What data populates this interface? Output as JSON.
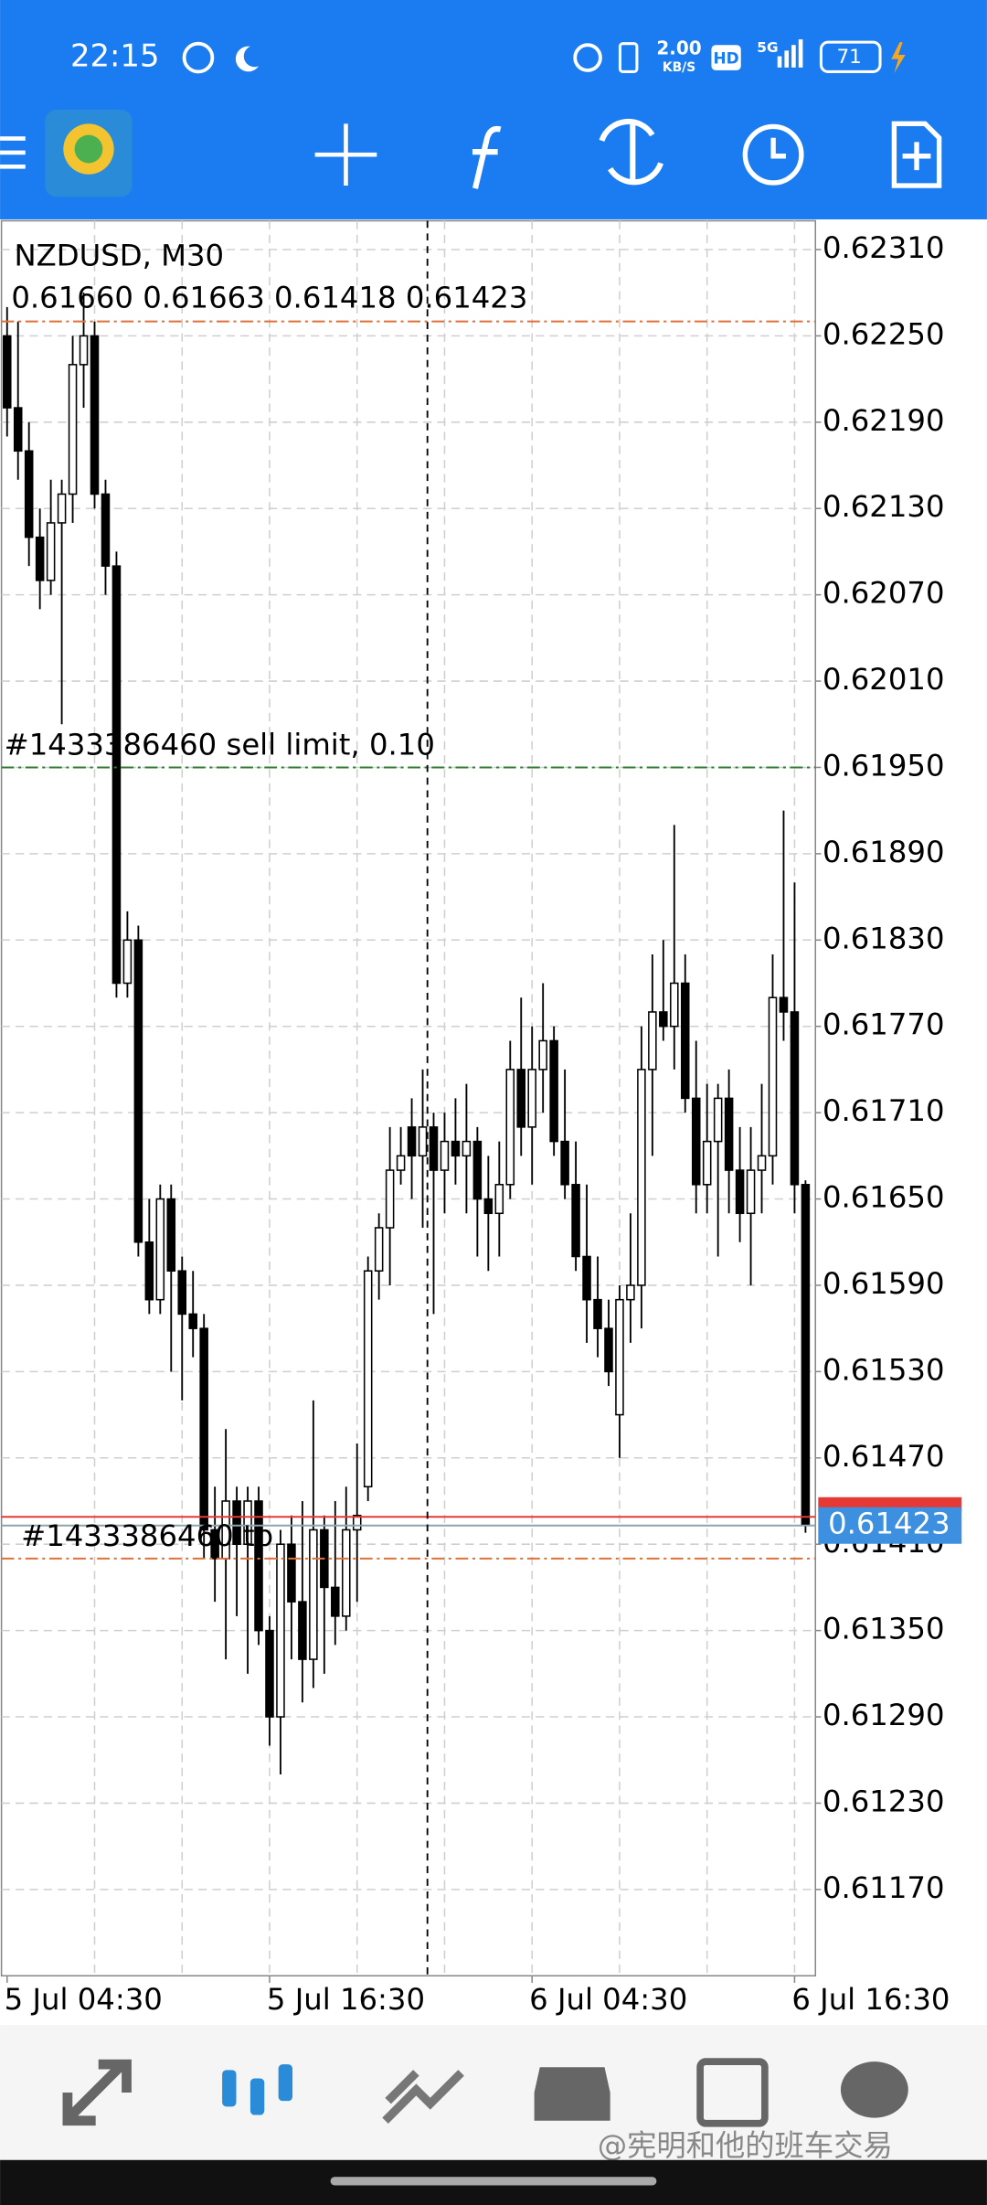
{
  "status_bar": {
    "time": "22:15",
    "speed": "2.00",
    "speed_unit": "KB/S",
    "hd": "HD",
    "network": "5G",
    "battery": "71"
  },
  "chart_data": {
    "type": "candlestick",
    "symbol": "NZDUSD, M30",
    "ohlc_text": "0.61660 0.61663 0.61418 0.61423",
    "categories": [
      "5 Jul 04:30",
      null,
      null,
      null,
      null,
      null,
      null,
      null,
      null,
      null,
      null,
      null,
      null,
      null,
      null,
      null,
      null,
      null,
      null,
      null,
      null,
      null,
      null,
      null,
      "5 Jul 16:30",
      null,
      null,
      null,
      null,
      null,
      null,
      null,
      null,
      null,
      null,
      null,
      null,
      null,
      null,
      null,
      null,
      null,
      null,
      null,
      null,
      null,
      null,
      null,
      "6 Jul 04:30",
      null,
      null,
      null,
      null,
      null,
      null,
      null,
      null,
      null,
      null,
      null,
      null,
      null,
      null,
      null,
      null,
      null,
      null,
      null,
      null,
      null,
      null,
      null,
      "6 Jul 16:30",
      null
    ],
    "open": [
      0.6225,
      0.622,
      0.6217,
      0.6211,
      0.6208,
      0.6212,
      0.6214,
      0.6223,
      0.6225,
      0.6214,
      0.6209,
      0.618,
      0.6183,
      0.6162,
      0.6158,
      0.6165,
      0.616,
      0.6157,
      0.6156,
      0.6142,
      0.614,
      0.6144,
      0.6141,
      0.6144,
      0.6135,
      0.6129,
      0.6141,
      0.6137,
      0.6133,
      0.6142,
      0.6138,
      0.6136,
      0.6142,
      0.6145,
      0.616,
      0.6163,
      0.6167,
      0.617,
      0.6168,
      0.617,
      0.6167,
      0.6169,
      0.6168,
      0.6169,
      0.6165,
      0.6164,
      0.6166,
      0.6174,
      0.617,
      0.6174,
      0.6176,
      0.6169,
      0.6166,
      0.6161,
      0.6158,
      0.6156,
      0.615,
      0.6158,
      0.6159,
      0.6174,
      0.6178,
      0.6177,
      0.618,
      0.6172,
      0.6166,
      0.6169,
      0.6172,
      0.6167,
      0.6164,
      0.6167,
      0.6168,
      0.6179,
      0.6178,
      0.6166
    ],
    "high": [
      0.6227,
      0.6226,
      0.6219,
      0.6213,
      0.6215,
      0.6215,
      0.6225,
      0.6228,
      0.6226,
      0.6215,
      0.621,
      0.6185,
      0.6184,
      0.6165,
      0.6166,
      0.6166,
      0.6161,
      0.616,
      0.6157,
      0.6145,
      0.6149,
      0.6145,
      0.6145,
      0.6145,
      0.6136,
      0.6142,
      0.6143,
      0.6144,
      0.6151,
      0.6143,
      0.6144,
      0.6145,
      0.6148,
      0.6161,
      0.6164,
      0.617,
      0.617,
      0.6172,
      0.6174,
      0.6171,
      0.6171,
      0.6172,
      0.6173,
      0.617,
      0.6168,
      0.6169,
      0.6176,
      0.6179,
      0.6177,
      0.618,
      0.6177,
      0.6174,
      0.6169,
      0.6166,
      0.6161,
      0.6158,
      0.6159,
      0.6164,
      0.6177,
      0.6182,
      0.6183,
      0.6191,
      0.6182,
      0.6176,
      0.6173,
      0.6173,
      0.6174,
      0.617,
      0.617,
      0.6173,
      0.6182,
      0.6192,
      0.6187,
      0.61663
    ],
    "low": [
      0.6218,
      0.6215,
      0.6209,
      0.6206,
      0.6207,
      0.6198,
      0.6212,
      0.622,
      0.6213,
      0.6207,
      0.6179,
      0.6179,
      0.6161,
      0.6157,
      0.6157,
      0.6153,
      0.6151,
      0.6154,
      0.614,
      0.6137,
      0.6133,
      0.6136,
      0.6132,
      0.6134,
      0.6127,
      0.6125,
      0.6133,
      0.613,
      0.6131,
      0.6132,
      0.6134,
      0.6135,
      0.6137,
      0.6144,
      0.6158,
      0.6159,
      0.6166,
      0.6165,
      0.6163,
      0.6157,
      0.6164,
      0.6166,
      0.6164,
      0.6161,
      0.616,
      0.6161,
      0.6165,
      0.6168,
      0.6166,
      0.6171,
      0.6168,
      0.6165,
      0.616,
      0.6155,
      0.6154,
      0.6152,
      0.6147,
      0.6155,
      0.6156,
      0.6168,
      0.6176,
      0.6174,
      0.6171,
      0.6164,
      0.6164,
      0.6161,
      0.6164,
      0.6162,
      0.6159,
      0.6164,
      0.6166,
      0.6176,
      0.6164,
      0.61418
    ],
    "close": [
      0.622,
      0.6217,
      0.6211,
      0.6208,
      0.6212,
      0.6214,
      0.6223,
      0.6225,
      0.6214,
      0.6209,
      0.618,
      0.6183,
      0.6162,
      0.6158,
      0.6165,
      0.616,
      0.6157,
      0.6156,
      0.6142,
      0.614,
      0.6144,
      0.6141,
      0.6144,
      0.6135,
      0.6129,
      0.6141,
      0.6137,
      0.6133,
      0.6142,
      0.6138,
      0.6136,
      0.6142,
      0.6143,
      0.616,
      0.6163,
      0.6167,
      0.6168,
      0.6168,
      0.617,
      0.6167,
      0.6169,
      0.6168,
      0.6169,
      0.6165,
      0.6164,
      0.6166,
      0.6174,
      0.617,
      0.6174,
      0.6176,
      0.6169,
      0.6166,
      0.6161,
      0.6158,
      0.6156,
      0.6153,
      0.6158,
      0.6159,
      0.6174,
      0.6178,
      0.6177,
      0.618,
      0.6172,
      0.6166,
      0.6169,
      0.6172,
      0.6167,
      0.6164,
      0.6167,
      0.6168,
      0.6179,
      0.6178,
      0.6166,
      0.61423
    ],
    "up_color": "#ffffff",
    "down_color": "#000000",
    "ylim": [
      0.6111,
      0.6233
    ],
    "yticks": [
      {
        "value": 0.6231,
        "label": "0.62310"
      },
      {
        "value": 0.6225,
        "label": "0.62250"
      },
      {
        "value": 0.6219,
        "label": "0.62190"
      },
      {
        "value": 0.6213,
        "label": "0.62130"
      },
      {
        "value": 0.6207,
        "label": "0.62070"
      },
      {
        "value": 0.6201,
        "label": "0.62010"
      },
      {
        "value": 0.6195,
        "label": "0.61950"
      },
      {
        "value": 0.6189,
        "label": "0.61890"
      },
      {
        "value": 0.6183,
        "label": "0.61830"
      },
      {
        "value": 0.6177,
        "label": "0.61770"
      },
      {
        "value": 0.6171,
        "label": "0.61710"
      },
      {
        "value": 0.6165,
        "label": "0.61650"
      },
      {
        "value": 0.6159,
        "label": "0.61590"
      },
      {
        "value": 0.6153,
        "label": "0.61530"
      },
      {
        "value": 0.6147,
        "label": "0.61470"
      },
      {
        "value": 0.6141,
        "label": "0.61410"
      },
      {
        "value": 0.6135,
        "label": "0.61350"
      },
      {
        "value": 0.6129,
        "label": "0.61290"
      },
      {
        "value": 0.6123,
        "label": "0.61230"
      },
      {
        "value": 0.6117,
        "label": "0.61170"
      }
    ],
    "grid": true,
    "levels": [
      {
        "value": 0.6226,
        "color": "#e0703a"
      },
      {
        "value": 0.6195,
        "color": "#2e7d32",
        "label": "#1433386460 sell limit, 0.10"
      },
      {
        "value": 0.614,
        "color": "#e0703a",
        "label": "#1433386460 tp"
      },
      {
        "value": 0.61429,
        "color": "#e53935"
      },
      {
        "value": 0.61423,
        "color": "#90a4ae"
      }
    ]
  },
  "watermark": "@宪明和他的班车交易"
}
